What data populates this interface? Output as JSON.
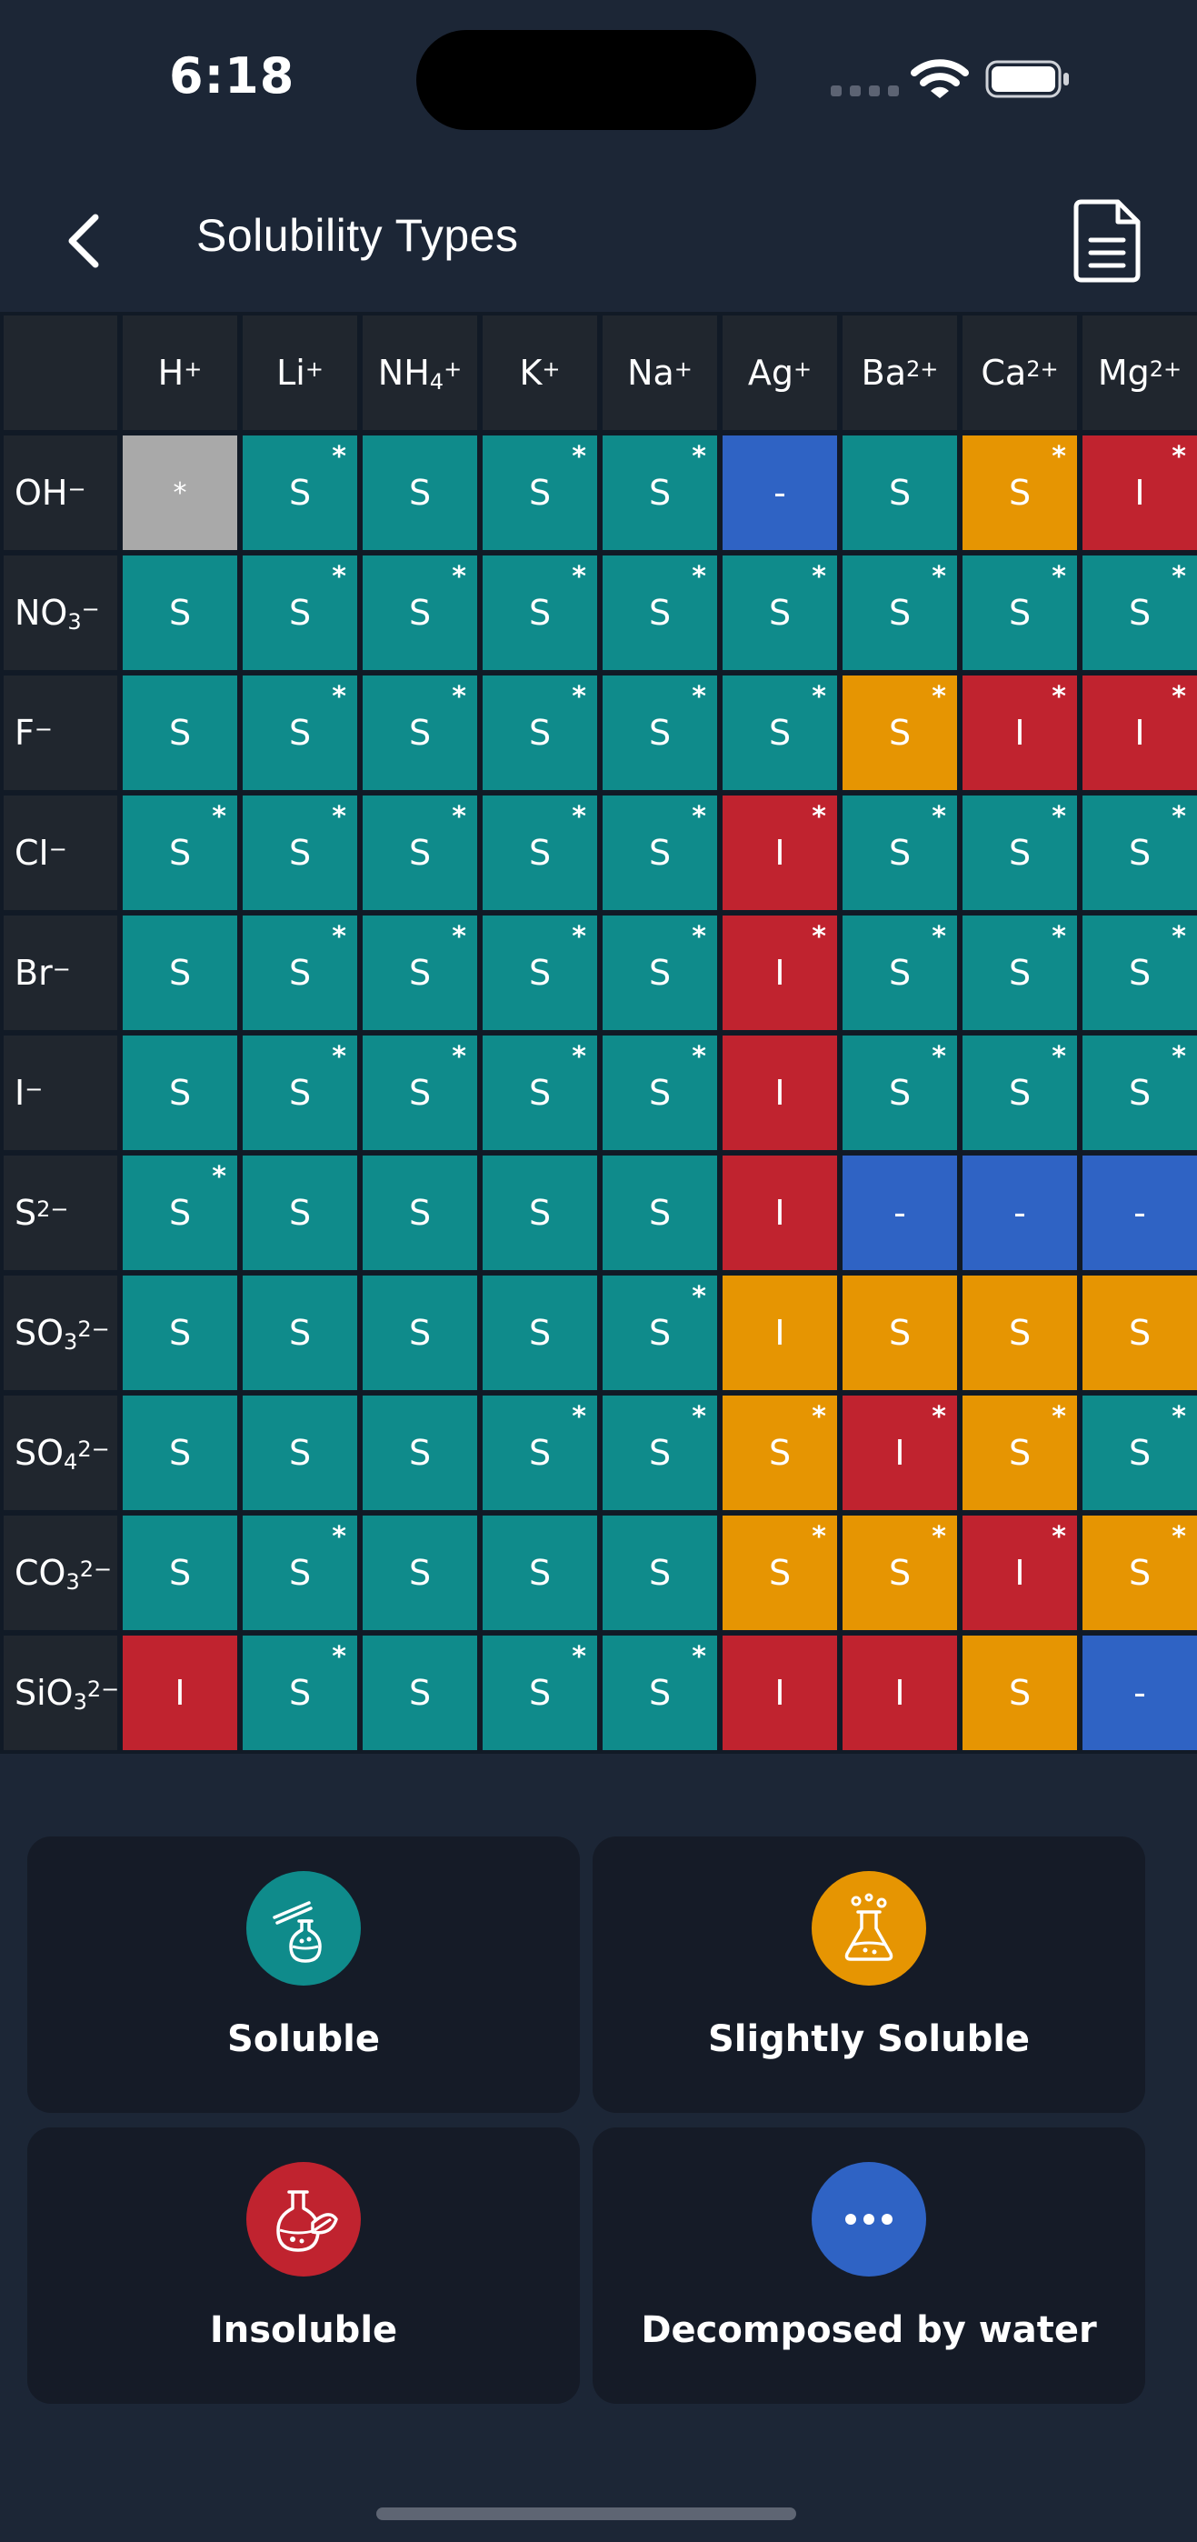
{
  "status": {
    "time": "6:18"
  },
  "header": {
    "title": "Solubility Types"
  },
  "table": {
    "columns": [
      {
        "base": "H",
        "sup": "+",
        "sub": ""
      },
      {
        "base": "Li",
        "sup": "+",
        "sub": ""
      },
      {
        "base": "NH",
        "sup": "+",
        "sub": "4"
      },
      {
        "base": "K",
        "sup": "+",
        "sub": ""
      },
      {
        "base": "Na",
        "sup": "+",
        "sub": ""
      },
      {
        "base": "Ag",
        "sup": "+",
        "sub": ""
      },
      {
        "base": "Ba",
        "sup": "2+",
        "sub": ""
      },
      {
        "base": "Ca",
        "sup": "2+",
        "sub": ""
      },
      {
        "base": "Mg",
        "sup": "2+",
        "sub": ""
      }
    ],
    "rows": [
      {
        "label": {
          "base": "OH",
          "sub": "",
          "sup": "−"
        },
        "cells": [
          {
            "t": "X",
            "v": "*",
            "s": false
          },
          {
            "t": "S",
            "v": "S",
            "s": true
          },
          {
            "t": "S",
            "v": "S",
            "s": false
          },
          {
            "t": "S",
            "v": "S",
            "s": true
          },
          {
            "t": "S",
            "v": "S",
            "s": true
          },
          {
            "t": "D",
            "v": "-",
            "s": false
          },
          {
            "t": "S",
            "v": "S",
            "s": false
          },
          {
            "t": "L",
            "v": "S",
            "s": true
          },
          {
            "t": "I",
            "v": "I",
            "s": true
          }
        ]
      },
      {
        "label": {
          "base": "NO",
          "sub": "3",
          "sup": "−"
        },
        "cells": [
          {
            "t": "S",
            "v": "S",
            "s": false
          },
          {
            "t": "S",
            "v": "S",
            "s": true
          },
          {
            "t": "S",
            "v": "S",
            "s": true
          },
          {
            "t": "S",
            "v": "S",
            "s": true
          },
          {
            "t": "S",
            "v": "S",
            "s": true
          },
          {
            "t": "S",
            "v": "S",
            "s": true
          },
          {
            "t": "S",
            "v": "S",
            "s": true
          },
          {
            "t": "S",
            "v": "S",
            "s": true
          },
          {
            "t": "S",
            "v": "S",
            "s": true
          }
        ]
      },
      {
        "label": {
          "base": "F",
          "sub": "",
          "sup": "−"
        },
        "cells": [
          {
            "t": "S",
            "v": "S",
            "s": false
          },
          {
            "t": "S",
            "v": "S",
            "s": true
          },
          {
            "t": "S",
            "v": "S",
            "s": true
          },
          {
            "t": "S",
            "v": "S",
            "s": true
          },
          {
            "t": "S",
            "v": "S",
            "s": true
          },
          {
            "t": "S",
            "v": "S",
            "s": true
          },
          {
            "t": "L",
            "v": "S",
            "s": true
          },
          {
            "t": "I",
            "v": "I",
            "s": true
          },
          {
            "t": "I",
            "v": "I",
            "s": true
          }
        ]
      },
      {
        "label": {
          "base": "CI",
          "sub": "",
          "sup": "−"
        },
        "cells": [
          {
            "t": "S",
            "v": "S",
            "s": true
          },
          {
            "t": "S",
            "v": "S",
            "s": true
          },
          {
            "t": "S",
            "v": "S",
            "s": true
          },
          {
            "t": "S",
            "v": "S",
            "s": true
          },
          {
            "t": "S",
            "v": "S",
            "s": true
          },
          {
            "t": "I",
            "v": "I",
            "s": true
          },
          {
            "t": "S",
            "v": "S",
            "s": true
          },
          {
            "t": "S",
            "v": "S",
            "s": true
          },
          {
            "t": "S",
            "v": "S",
            "s": true
          }
        ]
      },
      {
        "label": {
          "base": "Br",
          "sub": "",
          "sup": "−"
        },
        "cells": [
          {
            "t": "S",
            "v": "S",
            "s": false
          },
          {
            "t": "S",
            "v": "S",
            "s": true
          },
          {
            "t": "S",
            "v": "S",
            "s": true
          },
          {
            "t": "S",
            "v": "S",
            "s": true
          },
          {
            "t": "S",
            "v": "S",
            "s": true
          },
          {
            "t": "I",
            "v": "I",
            "s": true
          },
          {
            "t": "S",
            "v": "S",
            "s": true
          },
          {
            "t": "S",
            "v": "S",
            "s": true
          },
          {
            "t": "S",
            "v": "S",
            "s": true
          }
        ]
      },
      {
        "label": {
          "base": "I",
          "sub": "",
          "sup": "−"
        },
        "cells": [
          {
            "t": "S",
            "v": "S",
            "s": false
          },
          {
            "t": "S",
            "v": "S",
            "s": true
          },
          {
            "t": "S",
            "v": "S",
            "s": true
          },
          {
            "t": "S",
            "v": "S",
            "s": true
          },
          {
            "t": "S",
            "v": "S",
            "s": true
          },
          {
            "t": "I",
            "v": "I",
            "s": false
          },
          {
            "t": "S",
            "v": "S",
            "s": true
          },
          {
            "t": "S",
            "v": "S",
            "s": true
          },
          {
            "t": "S",
            "v": "S",
            "s": true
          }
        ]
      },
      {
        "label": {
          "base": "S",
          "sub": "",
          "sup": "2−"
        },
        "cells": [
          {
            "t": "S",
            "v": "S",
            "s": true
          },
          {
            "t": "S",
            "v": "S",
            "s": false
          },
          {
            "t": "S",
            "v": "S",
            "s": false
          },
          {
            "t": "S",
            "v": "S",
            "s": false
          },
          {
            "t": "S",
            "v": "S",
            "s": false
          },
          {
            "t": "I",
            "v": "I",
            "s": false
          },
          {
            "t": "D",
            "v": "-",
            "s": false
          },
          {
            "t": "D",
            "v": "-",
            "s": false
          },
          {
            "t": "D",
            "v": "-",
            "s": false
          }
        ]
      },
      {
        "label": {
          "base": "SO",
          "sub": "3",
          "sup": "2−"
        },
        "cells": [
          {
            "t": "S",
            "v": "S",
            "s": false
          },
          {
            "t": "S",
            "v": "S",
            "s": false
          },
          {
            "t": "S",
            "v": "S",
            "s": false
          },
          {
            "t": "S",
            "v": "S",
            "s": false
          },
          {
            "t": "S",
            "v": "S",
            "s": true
          },
          {
            "t": "L",
            "v": "I",
            "s": false
          },
          {
            "t": "L",
            "v": "S",
            "s": false
          },
          {
            "t": "L",
            "v": "S",
            "s": false
          },
          {
            "t": "L",
            "v": "S",
            "s": false
          }
        ]
      },
      {
        "label": {
          "base": "SO",
          "sub": "4",
          "sup": "2−"
        },
        "cells": [
          {
            "t": "S",
            "v": "S",
            "s": false
          },
          {
            "t": "S",
            "v": "S",
            "s": false
          },
          {
            "t": "S",
            "v": "S",
            "s": false
          },
          {
            "t": "S",
            "v": "S",
            "s": true
          },
          {
            "t": "S",
            "v": "S",
            "s": true
          },
          {
            "t": "L",
            "v": "S",
            "s": true
          },
          {
            "t": "I",
            "v": "I",
            "s": true
          },
          {
            "t": "L",
            "v": "S",
            "s": true
          },
          {
            "t": "S",
            "v": "S",
            "s": true
          }
        ]
      },
      {
        "label": {
          "base": "CO",
          "sub": "3",
          "sup": "2−"
        },
        "cells": [
          {
            "t": "S",
            "v": "S",
            "s": false
          },
          {
            "t": "S",
            "v": "S",
            "s": true
          },
          {
            "t": "S",
            "v": "S",
            "s": false
          },
          {
            "t": "S",
            "v": "S",
            "s": false
          },
          {
            "t": "S",
            "v": "S",
            "s": false
          },
          {
            "t": "L",
            "v": "S",
            "s": true
          },
          {
            "t": "L",
            "v": "S",
            "s": true
          },
          {
            "t": "I",
            "v": "I",
            "s": true
          },
          {
            "t": "L",
            "v": "S",
            "s": true
          }
        ]
      },
      {
        "label": {
          "base": "SiO",
          "sub": "3",
          "sup": "2−"
        },
        "cells": [
          {
            "t": "I",
            "v": "I",
            "s": false
          },
          {
            "t": "S",
            "v": "S",
            "s": true
          },
          {
            "t": "S",
            "v": "S",
            "s": false
          },
          {
            "t": "S",
            "v": "S",
            "s": true
          },
          {
            "t": "S",
            "v": "S",
            "s": true
          },
          {
            "t": "I",
            "v": "I",
            "s": false
          },
          {
            "t": "I",
            "v": "I",
            "s": false
          },
          {
            "t": "L",
            "v": "S",
            "s": false
          },
          {
            "t": "D",
            "v": "-",
            "s": false
          }
        ]
      }
    ]
  },
  "legend": [
    {
      "label": "Soluble",
      "color": "#0f8b8b",
      "icon": "flask-dropper-icon"
    },
    {
      "label": "Slightly Soluble",
      "color": "#e69502",
      "icon": "beaker-bubbles-icon"
    },
    {
      "label": "Insoluble",
      "color": "#c0232f",
      "icon": "flask-leaf-icon"
    },
    {
      "label": "Decomposed by water",
      "color": "#2f63c4",
      "icon": "more-dots-icon"
    }
  ]
}
